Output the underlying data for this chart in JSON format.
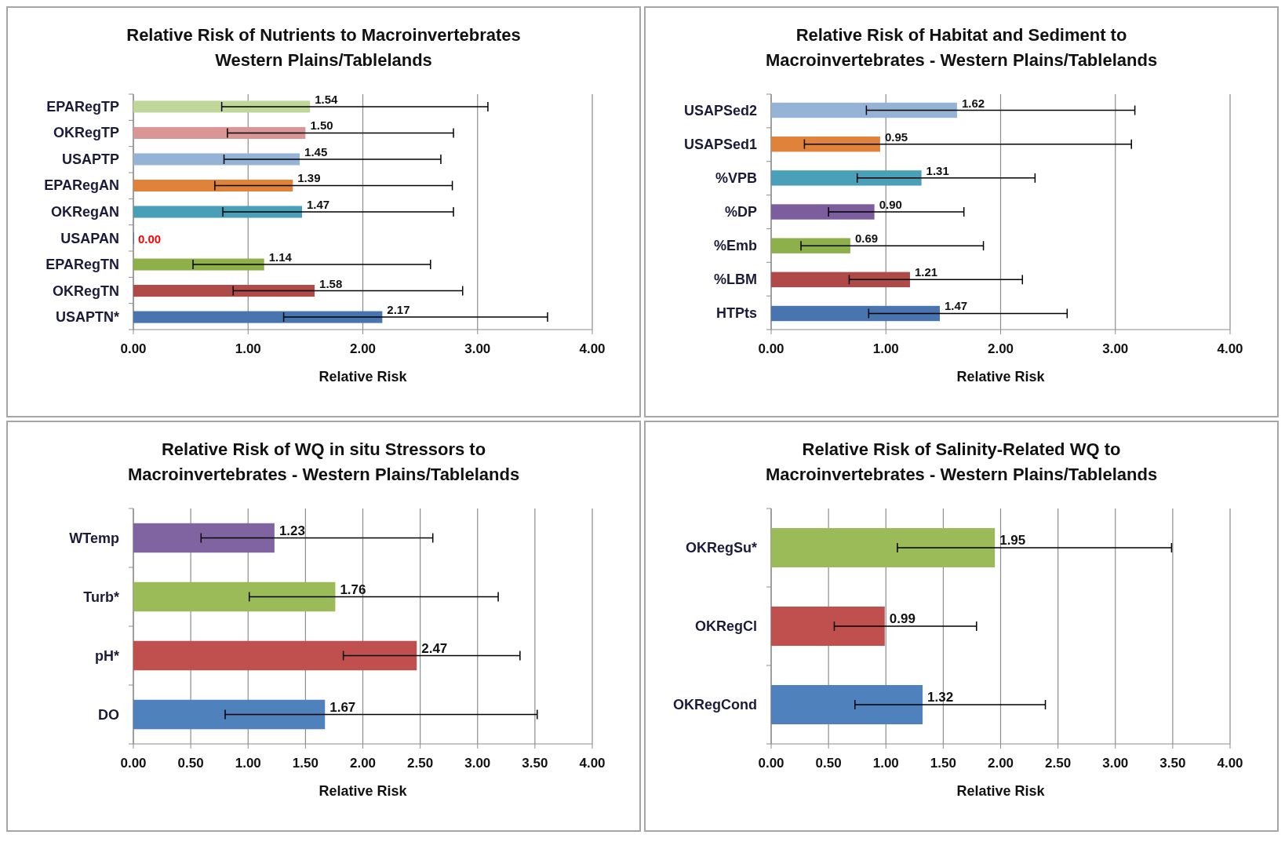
{
  "chart_data": [
    {
      "type": "bar",
      "orientation": "horizontal",
      "title": "Relative Risk of Nutrients to Macroinvertebrates\nWestern Plains/Tablelands",
      "xlabel": "Relative Risk",
      "categories": [
        "EPARegTP",
        "OKRegTP",
        "USAPTP",
        "EPARegAN",
        "OKRegAN",
        "USAPAN",
        "EPARegTN",
        "OKRegTN",
        "USAPTN*"
      ],
      "values": [
        1.54,
        1.5,
        1.45,
        1.39,
        1.47,
        0.0,
        1.14,
        1.58,
        2.17
      ],
      "colors": [
        "#c0d79a",
        "#d99694",
        "#95b3d7",
        "#e0823a",
        "#4a9fb8",
        "#4874b0",
        "#8eb04a",
        "#b04a48",
        "#4874b0"
      ],
      "errors": [
        [
          0.77,
          3.09
        ],
        [
          0.82,
          2.79
        ],
        [
          0.79,
          2.68
        ],
        [
          0.71,
          2.78
        ],
        [
          0.78,
          2.79
        ],
        null,
        [
          0.52,
          2.59
        ],
        [
          0.87,
          2.87
        ],
        [
          1.31,
          3.61
        ]
      ],
      "value_labels": [
        "1.54",
        "1.50",
        "1.45",
        "1.39",
        "1.47",
        "0.00",
        "1.14",
        "1.58",
        "2.17"
      ],
      "xlim": [
        0,
        4
      ],
      "xticks": [
        {
          "value": 0,
          "label": "0.00"
        },
        {
          "value": 1,
          "label": "1.00"
        },
        {
          "value": 2,
          "label": "2.00"
        },
        {
          "value": 3,
          "label": "3.00"
        },
        {
          "value": 4,
          "label": "4.00"
        }
      ],
      "grid": "x"
    },
    {
      "type": "bar",
      "orientation": "horizontal",
      "title": "Relative Risk of Habitat and Sediment to\nMacroinvertebrates - Western Plains/Tablelands",
      "xlabel": "Relative Risk",
      "categories": [
        "USAPSed2",
        "USAPSed1",
        "%VPB",
        "%DP",
        "%Emb",
        "%LBM",
        "HTPts"
      ],
      "values": [
        1.62,
        0.95,
        1.31,
        0.9,
        0.69,
        1.21,
        1.47
      ],
      "colors": [
        "#95b3d7",
        "#e0823a",
        "#4aa0b8",
        "#7c5e9e",
        "#8eb04a",
        "#b04a48",
        "#4874b0"
      ],
      "errors": [
        [
          0.83,
          3.17
        ],
        [
          0.29,
          3.14
        ],
        [
          0.75,
          2.3
        ],
        [
          0.5,
          1.68
        ],
        [
          0.26,
          1.85
        ],
        [
          0.68,
          2.19
        ],
        [
          0.85,
          2.58
        ]
      ],
      "value_labels": [
        "1.62",
        "0.95",
        "1.31",
        "0.90",
        "0.69",
        "1.21",
        "1.47"
      ],
      "xlim": [
        0,
        4
      ],
      "xticks": [
        {
          "value": 0,
          "label": "0.00"
        },
        {
          "value": 1,
          "label": "1.00"
        },
        {
          "value": 2,
          "label": "2.00"
        },
        {
          "value": 3,
          "label": "3.00"
        },
        {
          "value": 4,
          "label": "4.00"
        }
      ],
      "grid": "x"
    },
    {
      "type": "bar",
      "orientation": "horizontal",
      "title": "Relative Risk of WQ in situ Stressors to\nMacroinvertebrates - Western Plains/Tablelands",
      "xlabel": "Relative Risk",
      "categories": [
        "WTemp",
        "Turb*",
        "pH*",
        "DO"
      ],
      "values": [
        1.23,
        1.76,
        2.47,
        1.67
      ],
      "colors": [
        "#8064a2",
        "#9bbb59",
        "#c0504d",
        "#4f81bd"
      ],
      "errors": [
        [
          0.59,
          2.61
        ],
        [
          1.01,
          3.18
        ],
        [
          1.83,
          3.37
        ],
        [
          0.8,
          3.52
        ]
      ],
      "value_labels": [
        "1.23",
        "1.76",
        "2.47",
        "1.67"
      ],
      "xlim": [
        0,
        4
      ],
      "xticks": [
        {
          "value": 0,
          "label": "0.00"
        },
        {
          "value": 0.5,
          "label": "0.50"
        },
        {
          "value": 1,
          "label": "1.00"
        },
        {
          "value": 1.5,
          "label": "1.50"
        },
        {
          "value": 2,
          "label": "2.00"
        },
        {
          "value": 2.5,
          "label": "2.50"
        },
        {
          "value": 3,
          "label": "3.00"
        },
        {
          "value": 3.5,
          "label": "3.50"
        },
        {
          "value": 4,
          "label": "4.00"
        }
      ],
      "grid": "x"
    },
    {
      "type": "bar",
      "orientation": "horizontal",
      "title": "Relative Risk of Salinity-Related WQ to\nMacroinvertebrates - Western Plains/Tablelands",
      "xlabel": "Relative Risk",
      "categories": [
        "OKRegSu*",
        "OKRegCl",
        "OKRegCond"
      ],
      "values": [
        1.95,
        0.99,
        1.32
      ],
      "colors": [
        "#9bbb59",
        "#c0504d",
        "#4f81bd"
      ],
      "errors": [
        [
          1.1,
          3.49
        ],
        [
          0.55,
          1.79
        ],
        [
          0.73,
          2.39
        ]
      ],
      "value_labels": [
        "1.95",
        "0.99",
        "1.32"
      ],
      "xlim": [
        0,
        4
      ],
      "xticks": [
        {
          "value": 0,
          "label": "0.00"
        },
        {
          "value": 0.5,
          "label": "0.50"
        },
        {
          "value": 1,
          "label": "1.00"
        },
        {
          "value": 1.5,
          "label": "1.50"
        },
        {
          "value": 2,
          "label": "2.00"
        },
        {
          "value": 2.5,
          "label": "2.50"
        },
        {
          "value": 3,
          "label": "3.00"
        },
        {
          "value": 3.5,
          "label": "3.50"
        },
        {
          "value": 4,
          "label": "4.00"
        }
      ],
      "grid": "x"
    }
  ]
}
